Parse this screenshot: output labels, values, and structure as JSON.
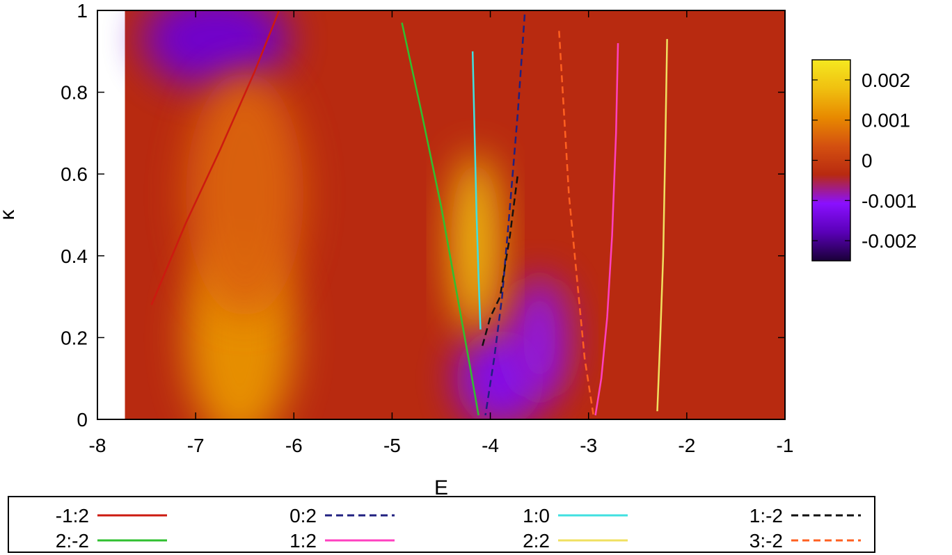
{
  "chart_data": {
    "type": "heatmap",
    "title": "",
    "xlabel": "E",
    "ylabel": "κ",
    "xlim": [
      -8,
      -1
    ],
    "ylim": [
      0,
      1
    ],
    "x_ticks": [
      "-8",
      "-7",
      "-6",
      "-5",
      "-4",
      "-3",
      "-2",
      "-1"
    ],
    "y_ticks": [
      "0",
      "0.2",
      "0.4",
      "0.6",
      "0.8",
      "1"
    ],
    "colorbar": {
      "range": [
        -0.0025,
        0.0025
      ],
      "tick_values": [
        0.002,
        0.001,
        0,
        -0.001,
        -0.002
      ],
      "tick_labels": [
        "0.002",
        "0.001",
        "0",
        "-0.001",
        "-0.002"
      ],
      "colors": [
        "#1a0038",
        "#5a00b8",
        "#8a10ff",
        "#b82a10",
        "#d45010",
        "#e88a00",
        "#f0c010",
        "#f5e820"
      ]
    },
    "background_color": "#b82a10",
    "heat_regions": [
      {
        "kind": "negative",
        "x": -6.8,
        "y": 0.93,
        "rx": 0.75,
        "ry": 0.12,
        "value": -0.0015
      },
      {
        "kind": "negative",
        "x": -3.9,
        "y": 0.1,
        "rx": 0.45,
        "ry": 0.12,
        "value": -0.0012
      },
      {
        "kind": "negative",
        "x": -3.5,
        "y": 0.2,
        "rx": 0.3,
        "ry": 0.15,
        "value": -0.001
      },
      {
        "kind": "positive",
        "x": -6.55,
        "y": 0.2,
        "rx": 0.55,
        "ry": 0.26,
        "value": 0.0012
      },
      {
        "kind": "positive",
        "x": -6.5,
        "y": 0.55,
        "rx": 0.6,
        "ry": 0.3,
        "value": 0.0006
      },
      {
        "kind": "positive",
        "x": -4.15,
        "y": 0.43,
        "rx": 0.25,
        "ry": 0.22,
        "value": 0.0018
      }
    ],
    "series": [
      {
        "name": "-1:2",
        "color": "#cc1a10",
        "dash": "solid",
        "x": [
          -7.45,
          -7.1,
          -6.75,
          -6.4,
          -6.15
        ],
        "y": [
          0.28,
          0.48,
          0.66,
          0.85,
          1.0
        ]
      },
      {
        "name": "2:-2",
        "color": "#30c030",
        "dash": "solid",
        "x": [
          -4.9,
          -4.7,
          -4.5,
          -4.35,
          -4.2,
          -4.12
        ],
        "y": [
          0.97,
          0.75,
          0.52,
          0.32,
          0.12,
          0.01
        ]
      },
      {
        "name": "0:2",
        "color": "#202080",
        "dash": "dashed",
        "x": [
          -3.65,
          -3.72,
          -3.8,
          -3.88,
          -3.96,
          -4.05
        ],
        "y": [
          0.99,
          0.75,
          0.52,
          0.3,
          0.15,
          0.01
        ]
      },
      {
        "name": "1:2",
        "color": "#ff40c0",
        "dash": "solid",
        "x": [
          -2.7,
          -2.72,
          -2.76,
          -2.81,
          -2.87,
          -2.93
        ],
        "y": [
          0.92,
          0.7,
          0.45,
          0.25,
          0.1,
          0.01
        ]
      },
      {
        "name": "1:0",
        "color": "#40e0e0",
        "dash": "solid",
        "x": [
          -4.18,
          -4.16,
          -4.14,
          -4.12,
          -4.1
        ],
        "y": [
          0.9,
          0.7,
          0.5,
          0.35,
          0.22
        ]
      },
      {
        "name": "2:2",
        "color": "#f0e060",
        "dash": "solid",
        "x": [
          -2.2,
          -2.22,
          -2.24,
          -2.27,
          -2.3
        ],
        "y": [
          0.93,
          0.65,
          0.4,
          0.2,
          0.02
        ]
      },
      {
        "name": "1:-2",
        "color": "#111111",
        "dash": "dashed",
        "x": [
          -4.08,
          -4.0,
          -3.9,
          -3.8,
          -3.72
        ],
        "y": [
          0.18,
          0.25,
          0.3,
          0.45,
          0.6
        ]
      },
      {
        "name": "3:-2",
        "color": "#ff6020",
        "dash": "dashed",
        "x": [
          -3.3,
          -3.25,
          -3.2,
          -3.12,
          -3.04,
          -2.95
        ],
        "y": [
          0.95,
          0.75,
          0.55,
          0.35,
          0.15,
          0.01
        ]
      }
    ],
    "legend": {
      "placement": "bottom",
      "entries": [
        {
          "label": "-1:2",
          "color": "#cc1a10",
          "dash": "solid"
        },
        {
          "label": "0:2",
          "color": "#202080",
          "dash": "dashed"
        },
        {
          "label": "1:0",
          "color": "#40e0e0",
          "dash": "solid"
        },
        {
          "label": "1:-2",
          "color": "#111111",
          "dash": "dashed"
        },
        {
          "label": "2:-2",
          "color": "#30c030",
          "dash": "solid"
        },
        {
          "label": "1:2",
          "color": "#ff40c0",
          "dash": "solid"
        },
        {
          "label": "2:2",
          "color": "#f0e060",
          "dash": "solid"
        },
        {
          "label": "3:-2",
          "color": "#ff6020",
          "dash": "dashed"
        }
      ]
    },
    "grid": false
  }
}
